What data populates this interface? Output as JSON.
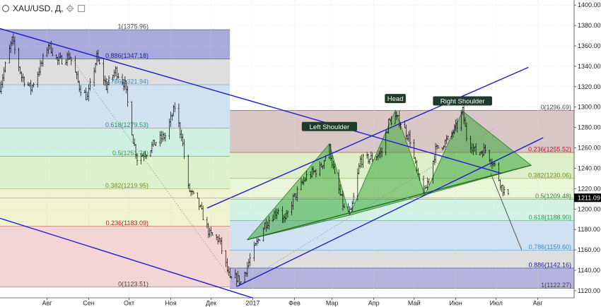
{
  "header": {
    "symbol": "XAU/USD, Д,",
    "icons": [
      "circle-icon",
      "gear-icon",
      "box-icon"
    ],
    "settings_glyph": "⚙"
  },
  "price_tag": "1211.09",
  "colors": {
    "candle": "#000000",
    "trend_blue": "#1d1dcc",
    "neckline": "#1d6b1d",
    "pattern_fill": "#3ca83c",
    "label_bg": "#1f3b2c"
  },
  "chart_data": {
    "type": "candlestick",
    "title": "",
    "ylim": [
      1113,
      1405
    ],
    "y_ticks": [
      1120,
      1140,
      1160,
      1180,
      1200,
      1220,
      1240,
      1260,
      1280,
      1300,
      1320,
      1340,
      1360,
      1380,
      1400
    ],
    "y_tick_labels": [
      "1120.00",
      "1140.00",
      "1160.00",
      "1180.00",
      "1200.00",
      "1220.00",
      "1240.00",
      "1260.00",
      "1280.00",
      "1300.00",
      "1320.00",
      "1340.00",
      "1360.00",
      "1380.00",
      "1400.00"
    ],
    "x_range": [
      "2016-06-27",
      "2017-08-28"
    ],
    "x_ticks": [
      {
        "date": "2016-08-01",
        "label": "Авг"
      },
      {
        "date": "2016-09-01",
        "label": "Сен"
      },
      {
        "date": "2016-10-01",
        "label": "Окт"
      },
      {
        "date": "2016-11-01",
        "label": "Ноя"
      },
      {
        "date": "2016-12-01",
        "label": "Дек"
      },
      {
        "date": "2017-01-01",
        "label": "2017"
      },
      {
        "date": "2017-02-01",
        "label": "Фев"
      },
      {
        "date": "2017-03-01",
        "label": "Мар"
      },
      {
        "date": "2017-04-01",
        "label": "Апр"
      },
      {
        "date": "2017-05-01",
        "label": "Май"
      },
      {
        "date": "2017-06-01",
        "label": "Июн"
      },
      {
        "date": "2017-07-01",
        "label": "Июл"
      },
      {
        "date": "2017-08-01",
        "label": "Авг"
      }
    ],
    "close_path": [
      [
        "2016-06-27",
        1320
      ],
      [
        "2016-07-06",
        1366
      ],
      [
        "2016-07-13",
        1330
      ],
      [
        "2016-07-20",
        1318
      ],
      [
        "2016-07-28",
        1343
      ],
      [
        "2016-08-02",
        1362
      ],
      [
        "2016-08-09",
        1345
      ],
      [
        "2016-08-18",
        1350
      ],
      [
        "2016-08-25",
        1320
      ],
      [
        "2016-08-31",
        1309
      ],
      [
        "2016-09-07",
        1349
      ],
      [
        "2016-09-14",
        1320
      ],
      [
        "2016-09-21",
        1336
      ],
      [
        "2016-09-28",
        1322
      ],
      [
        "2016-10-04",
        1268
      ],
      [
        "2016-10-07",
        1250
      ],
      [
        "2016-10-14",
        1256
      ],
      [
        "2016-10-21",
        1266
      ],
      [
        "2016-10-28",
        1272
      ],
      [
        "2016-11-04",
        1300
      ],
      [
        "2016-11-08",
        1276
      ],
      [
        "2016-11-09",
        1274
      ],
      [
        "2016-11-14",
        1220
      ],
      [
        "2016-11-21",
        1207
      ],
      [
        "2016-11-30",
        1175
      ],
      [
        "2016-12-07",
        1170
      ],
      [
        "2016-12-15",
        1130
      ],
      [
        "2016-12-20",
        1133
      ],
      [
        "2016-12-23",
        1128
      ],
      [
        "2016-12-30",
        1151
      ],
      [
        "2017-01-10",
        1185
      ],
      [
        "2017-01-20",
        1200
      ],
      [
        "2017-01-25",
        1188
      ],
      [
        "2017-01-31",
        1210
      ],
      [
        "2017-02-10",
        1232
      ],
      [
        "2017-02-20",
        1240
      ],
      [
        "2017-02-27",
        1260
      ],
      [
        "2017-03-03",
        1232
      ],
      [
        "2017-03-10",
        1200
      ],
      [
        "2017-03-15",
        1196
      ],
      [
        "2017-03-22",
        1248
      ],
      [
        "2017-03-31",
        1250
      ],
      [
        "2017-04-07",
        1256
      ],
      [
        "2017-04-12",
        1285
      ],
      [
        "2017-04-17",
        1290
      ],
      [
        "2017-04-21",
        1285
      ],
      [
        "2017-04-28",
        1268
      ],
      [
        "2017-05-04",
        1230
      ],
      [
        "2017-05-09",
        1216
      ],
      [
        "2017-05-17",
        1258
      ],
      [
        "2017-05-26",
        1268
      ],
      [
        "2017-06-02",
        1282
      ],
      [
        "2017-06-06",
        1296
      ],
      [
        "2017-06-09",
        1271
      ],
      [
        "2017-06-16",
        1255
      ],
      [
        "2017-06-23",
        1258
      ],
      [
        "2017-06-30",
        1242
      ],
      [
        "2017-07-05",
        1222
      ],
      [
        "2017-07-10",
        1211
      ]
    ],
    "head_and_shoulders": {
      "left_shoulder": {
        "label": "Left Shoulder",
        "peak": [
          "2017-02-27",
          1264
        ]
      },
      "head": {
        "label": "Head",
        "peak": [
          "2017-04-17",
          1297
        ]
      },
      "right_shoulder": {
        "label": "Right Shoulder",
        "peak": [
          "2017-06-06",
          1296
        ]
      },
      "neckline": [
        [
          "2016-12-28",
          1170
        ],
        [
          "2017-03-14",
          1194
        ],
        [
          "2017-05-09",
          1214
        ],
        [
          "2017-07-27",
          1243
        ]
      ]
    },
    "fibonacci_left": {
      "x_range": [
        "2016-06-27",
        "2016-12-15"
      ],
      "levels": [
        {
          "ratio": "1",
          "price": 1375.96,
          "label": "1(1375.96)",
          "fill": "#9a9ad6",
          "text_color": "#444444"
        },
        {
          "ratio": "0.886",
          "price": 1347.18,
          "label": "0.886(1347.18)",
          "fill": "#d8d8d8",
          "text_color": "#1a1aa0"
        },
        {
          "ratio": "0.786",
          "price": 1321.94,
          "label": "0.786(1321.94)",
          "fill": "#c8dcec",
          "text_color": "#3c8cc0"
        },
        {
          "ratio": "0.618",
          "price": 1279.53,
          "label": "0.618(1279.53)",
          "fill": "#c6ecdc",
          "text_color": "#2a9a4a"
        },
        {
          "ratio": "0.5",
          "price": 1251.74,
          "label": "0.5(1251.74)",
          "fill": "#d6f0c4",
          "text_color": "#3aa030"
        },
        {
          "ratio": "0.382",
          "price": 1219.95,
          "label": "0.382(1219.95)",
          "fill": "#ecf2c6",
          "text_color": "#7a8a20"
        },
        {
          "ratio": "0.236",
          "price": 1183.09,
          "label": "0.236(1183.09)",
          "fill": "#f2cece",
          "text_color": "#b02020"
        },
        {
          "ratio": "0",
          "price": 1123.51,
          "label": "0(1123.51)",
          "fill": "",
          "text_color": "#444444"
        }
      ]
    },
    "fibonacci_right": {
      "x_range": [
        "2016-12-15",
        "2017-08-28"
      ],
      "levels": [
        {
          "ratio": "0",
          "price": 1296.69,
          "label": "0(1296.69)",
          "fill": "#d2bcbc",
          "text_color": "#444444"
        },
        {
          "ratio": "0.236",
          "price": 1255.52,
          "label": "0.236(1255.52)",
          "fill": "#d6ecbe",
          "text_color": "#b02020"
        },
        {
          "ratio": "0.382",
          "price": 1230.06,
          "label": "0.382(1230.06)",
          "fill": "#e6f4d0",
          "text_color": "#7a8a20"
        },
        {
          "ratio": "0.5",
          "price": 1209.48,
          "label": "0.5(1209.48)",
          "fill": "#cceee0",
          "text_color": "#2a8a3a"
        },
        {
          "ratio": "0.618",
          "price": 1188.9,
          "label": "0.618(1188.90)",
          "fill": "#c8dcee",
          "text_color": "#2a9a4a"
        },
        {
          "ratio": "0.786",
          "price": 1159.6,
          "label": "0.786(1159.60)",
          "fill": "#d8d8d8",
          "text_color": "#3c8cc0"
        },
        {
          "ratio": "0.886",
          "price": 1142.16,
          "label": "0.886(1142.16)",
          "fill": "#a8a6d8",
          "text_color": "#1a1aa0"
        },
        {
          "ratio": "1",
          "price": 1122.27,
          "label": "1(1122.27)",
          "fill": "",
          "text_color": "#444444"
        }
      ]
    },
    "trend_lines": [
      {
        "name": "down-channel-upper",
        "from": [
          "2016-06-27",
          1377
        ],
        "to": [
          "2017-07-05",
          1235
        ],
        "color": "#1d1dcc"
      },
      {
        "name": "down-channel-lower",
        "from": [
          "2016-06-27",
          1191
        ],
        "to": [
          "2017-01-20",
          1105
        ],
        "color": "#1d1dcc"
      },
      {
        "name": "up-channel-upper",
        "from": [
          "2016-11-28",
          1201
        ],
        "to": [
          "2017-07-25",
          1339
        ],
        "color": "#1d1dcc"
      },
      {
        "name": "up-channel-lower",
        "from": [
          "2016-12-20",
          1124
        ],
        "to": [
          "2017-08-05",
          1270
        ],
        "color": "#1d1dcc"
      }
    ],
    "dotted_lines": [
      {
        "from": [
          "2016-08-15",
          1355
        ],
        "to": [
          "2016-12-20",
          1124
        ]
      },
      {
        "from": [
          "2016-12-20",
          1124
        ],
        "to": [
          "2017-07-01",
          1280
        ]
      }
    ],
    "projection_line": {
      "from": [
        "2017-06-27",
        1235
      ],
      "to": [
        "2017-07-20",
        1160
      ]
    }
  }
}
